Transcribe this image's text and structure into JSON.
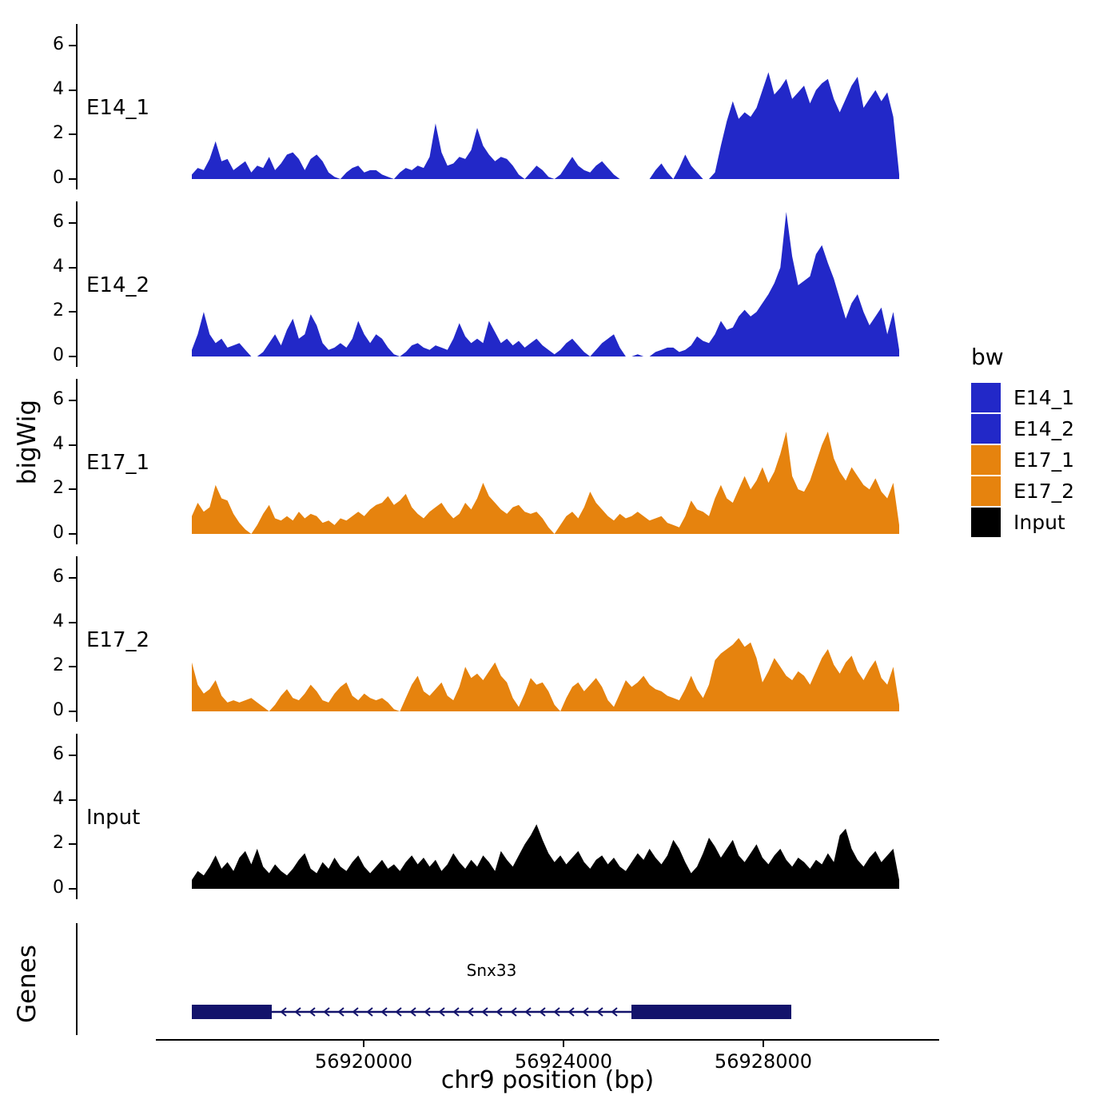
{
  "figure": {
    "ylab": "bigWig",
    "genes_lab": "Genes",
    "xlab": "chr9 position (bp)"
  },
  "legend": {
    "title": "bw",
    "entries": [
      {
        "label": "E14_1",
        "color": "#2228C8"
      },
      {
        "label": "E14_2",
        "color": "#2228C8"
      },
      {
        "label": "E17_1",
        "color": "#E6830E"
      },
      {
        "label": "E17_2",
        "color": "#E6830E"
      },
      {
        "label": "Input",
        "color": "#000000"
      }
    ]
  },
  "chart_data": {
    "type": "area",
    "title": "",
    "xlabel": "chr9 position (bp)",
    "ylabel": "bigWig",
    "x_range_bp": [
      56916560,
      56930720
    ],
    "x_ticks": [
      56920000,
      56924000,
      56928000
    ],
    "y_ticks": [
      0,
      2,
      4,
      6
    ],
    "ylim": [
      0,
      7
    ],
    "facets": [
      "E14_1",
      "E14_2",
      "E17_1",
      "E17_2",
      "Input"
    ],
    "series": [
      {
        "name": "E14_1",
        "color": "#2228C8",
        "values": [
          0.2,
          0.5,
          0.4,
          0.9,
          1.7,
          0.8,
          0.9,
          0.4,
          0.6,
          0.8,
          0.3,
          0.6,
          0.5,
          1.0,
          0.4,
          0.7,
          1.1,
          1.2,
          0.9,
          0.4,
          0.9,
          1.1,
          0.8,
          0.3,
          0.1,
          0.0,
          0.3,
          0.5,
          0.6,
          0.3,
          0.4,
          0.4,
          0.2,
          0.1,
          0.0,
          0.3,
          0.5,
          0.4,
          0.6,
          0.5,
          1.0,
          2.5,
          1.2,
          0.6,
          0.7,
          1.0,
          0.9,
          1.3,
          2.3,
          1.5,
          1.1,
          0.8,
          1.0,
          0.9,
          0.6,
          0.2,
          0.0,
          0.3,
          0.6,
          0.4,
          0.1,
          0.0,
          0.2,
          0.6,
          1.0,
          0.6,
          0.4,
          0.3,
          0.6,
          0.8,
          0.5,
          0.2,
          0.0,
          0.0,
          0.0,
          0.0,
          0.0,
          0.0,
          0.4,
          0.7,
          0.3,
          0.0,
          0.5,
          1.1,
          0.6,
          0.3,
          0.0,
          0.0,
          0.3,
          1.5,
          2.6,
          3.5,
          2.7,
          3.0,
          2.8,
          3.2,
          4.0,
          4.8,
          3.8,
          4.1,
          4.5,
          3.6,
          3.9,
          4.2,
          3.4,
          4.0,
          4.3,
          4.5,
          3.6,
          3.0,
          3.6,
          4.2,
          4.6,
          3.2,
          3.6,
          4.0,
          3.5,
          3.9,
          2.8,
          0.2
        ]
      },
      {
        "name": "E14_2",
        "color": "#2228C8",
        "values": [
          0.3,
          1.0,
          2.0,
          1.0,
          0.6,
          0.8,
          0.4,
          0.5,
          0.6,
          0.3,
          0.0,
          0.0,
          0.2,
          0.6,
          1.0,
          0.5,
          1.2,
          1.7,
          0.8,
          1.0,
          1.9,
          1.4,
          0.6,
          0.3,
          0.4,
          0.6,
          0.4,
          0.8,
          1.6,
          1.0,
          0.6,
          1.0,
          0.8,
          0.4,
          0.1,
          0.0,
          0.2,
          0.5,
          0.6,
          0.4,
          0.3,
          0.5,
          0.4,
          0.3,
          0.8,
          1.5,
          0.9,
          0.6,
          0.8,
          0.6,
          1.6,
          1.1,
          0.6,
          0.8,
          0.5,
          0.7,
          0.4,
          0.6,
          0.8,
          0.5,
          0.3,
          0.1,
          0.3,
          0.6,
          0.8,
          0.5,
          0.2,
          0.0,
          0.3,
          0.6,
          0.8,
          1.0,
          0.4,
          0.0,
          0.0,
          0.1,
          0.0,
          0.0,
          0.2,
          0.3,
          0.4,
          0.4,
          0.2,
          0.3,
          0.5,
          0.9,
          0.7,
          0.6,
          1.0,
          1.6,
          1.2,
          1.3,
          1.8,
          2.1,
          1.8,
          2.0,
          2.4,
          2.8,
          3.3,
          4.0,
          6.5,
          4.5,
          3.2,
          3.4,
          3.6,
          4.6,
          5.0,
          4.2,
          3.5,
          2.6,
          1.7,
          2.4,
          2.8,
          2.0,
          1.4,
          1.8,
          2.2,
          1.0,
          2.0,
          0.3
        ]
      },
      {
        "name": "E17_1",
        "color": "#E6830E",
        "values": [
          0.8,
          1.4,
          1.0,
          1.2,
          2.2,
          1.6,
          1.5,
          0.9,
          0.5,
          0.2,
          0.0,
          0.4,
          0.9,
          1.3,
          0.7,
          0.6,
          0.8,
          0.6,
          1.0,
          0.7,
          0.9,
          0.8,
          0.5,
          0.6,
          0.4,
          0.7,
          0.6,
          0.8,
          1.0,
          0.8,
          1.1,
          1.3,
          1.4,
          1.7,
          1.3,
          1.5,
          1.8,
          1.2,
          0.9,
          0.7,
          1.0,
          1.2,
          1.4,
          1.0,
          0.7,
          0.9,
          1.4,
          1.1,
          1.6,
          2.3,
          1.7,
          1.4,
          1.1,
          0.9,
          1.2,
          1.3,
          1.0,
          0.9,
          1.0,
          0.7,
          0.3,
          0.0,
          0.4,
          0.8,
          1.0,
          0.7,
          1.2,
          1.9,
          1.4,
          1.1,
          0.8,
          0.6,
          0.9,
          0.7,
          0.8,
          1.0,
          0.8,
          0.6,
          0.7,
          0.8,
          0.5,
          0.4,
          0.3,
          0.8,
          1.5,
          1.1,
          1.0,
          0.8,
          1.6,
          2.2,
          1.6,
          1.4,
          2.0,
          2.6,
          2.0,
          2.4,
          3.0,
          2.3,
          2.8,
          3.6,
          4.6,
          2.6,
          2.0,
          1.9,
          2.4,
          3.2,
          4.0,
          4.6,
          3.4,
          2.8,
          2.4,
          3.0,
          2.6,
          2.2,
          2.0,
          2.5,
          1.9,
          1.6,
          2.3,
          0.4
        ]
      },
      {
        "name": "E17_2",
        "color": "#E6830E",
        "values": [
          2.2,
          1.2,
          0.8,
          1.0,
          1.4,
          0.7,
          0.4,
          0.5,
          0.4,
          0.5,
          0.6,
          0.4,
          0.2,
          0.0,
          0.3,
          0.7,
          1.0,
          0.6,
          0.5,
          0.8,
          1.2,
          0.9,
          0.5,
          0.4,
          0.8,
          1.1,
          1.3,
          0.7,
          0.5,
          0.8,
          0.6,
          0.5,
          0.6,
          0.4,
          0.1,
          0.0,
          0.6,
          1.2,
          1.6,
          0.9,
          0.7,
          1.0,
          1.3,
          0.7,
          0.5,
          1.1,
          2.0,
          1.5,
          1.7,
          1.4,
          1.8,
          2.2,
          1.6,
          1.3,
          0.6,
          0.2,
          0.8,
          1.5,
          1.2,
          1.3,
          0.9,
          0.3,
          0.0,
          0.6,
          1.1,
          1.3,
          0.9,
          1.2,
          1.5,
          1.1,
          0.5,
          0.2,
          0.8,
          1.4,
          1.1,
          1.3,
          1.6,
          1.2,
          1.0,
          0.9,
          0.7,
          0.6,
          0.5,
          1.0,
          1.6,
          1.0,
          0.6,
          1.2,
          2.3,
          2.6,
          2.8,
          3.0,
          3.3,
          2.9,
          3.1,
          2.4,
          1.3,
          1.8,
          2.4,
          2.0,
          1.6,
          1.4,
          1.8,
          1.6,
          1.2,
          1.8,
          2.4,
          2.8,
          2.1,
          1.7,
          2.2,
          2.5,
          1.8,
          1.4,
          1.9,
          2.3,
          1.5,
          1.2,
          2.0,
          0.3
        ]
      },
      {
        "name": "Input",
        "color": "#000000",
        "values": [
          0.4,
          0.8,
          0.6,
          1.0,
          1.5,
          0.9,
          1.2,
          0.8,
          1.4,
          1.7,
          1.1,
          1.8,
          1.0,
          0.7,
          1.1,
          0.8,
          0.6,
          0.9,
          1.3,
          1.6,
          0.9,
          0.7,
          1.2,
          0.9,
          1.4,
          1.0,
          0.8,
          1.2,
          1.5,
          1.0,
          0.7,
          1.0,
          1.3,
          0.9,
          1.1,
          0.8,
          1.2,
          1.5,
          1.1,
          1.4,
          1.0,
          1.3,
          0.8,
          1.1,
          1.6,
          1.2,
          0.9,
          1.3,
          1.0,
          1.5,
          1.2,
          0.8,
          1.7,
          1.3,
          1.0,
          1.5,
          2.0,
          2.4,
          2.9,
          2.2,
          1.6,
          1.2,
          1.5,
          1.1,
          1.4,
          1.7,
          1.2,
          0.9,
          1.3,
          1.5,
          1.1,
          1.4,
          1.0,
          0.8,
          1.2,
          1.6,
          1.3,
          1.8,
          1.4,
          1.1,
          1.5,
          2.2,
          1.8,
          1.2,
          0.7,
          1.0,
          1.6,
          2.3,
          1.9,
          1.4,
          1.8,
          2.2,
          1.5,
          1.2,
          1.6,
          2.0,
          1.4,
          1.1,
          1.5,
          1.8,
          1.3,
          1.0,
          1.4,
          1.2,
          0.9,
          1.3,
          1.1,
          1.6,
          1.2,
          2.4,
          2.7,
          1.8,
          1.3,
          1.0,
          1.4,
          1.7,
          1.2,
          1.5,
          1.8,
          0.4
        ]
      }
    ],
    "gene": {
      "name": "Snx33",
      "strand": "-",
      "color": "#13136B",
      "start_bp": 56916560,
      "end_bp": 56928560,
      "exons_bp": [
        [
          56916560,
          56918160
        ],
        [
          56925360,
          56928560
        ]
      ]
    }
  }
}
